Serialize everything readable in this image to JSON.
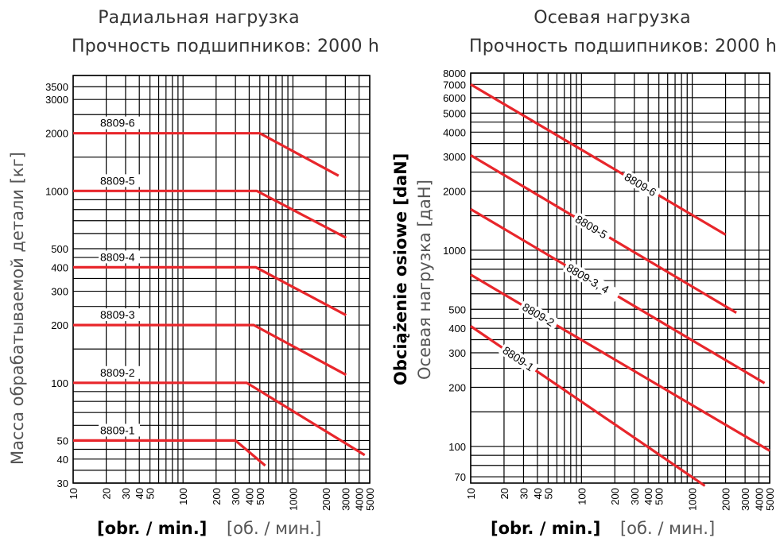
{
  "charts": {
    "left": {
      "title_line1": "Радиальная нагрузка",
      "title_line2": "Прочность подшипников: 2000 h",
      "ylabel": "Масса обрабатываемой детали [кг]",
      "xlabel_bold": "[obr. / min.]",
      "xlabel_ru": "[об. / мин.]"
    },
    "right": {
      "title_line1": "Осевая нагрузка",
      "title_line2": "Прочность подшипников: 2000 h",
      "ylabel_bold": "Obciążenie osiowe [daN]",
      "ylabel_ru": "Осевая нагрузка [даН]",
      "xlabel_bold": "[obr. / min.]",
      "xlabel_ru": "[об. / мин.]"
    }
  },
  "chart_data": [
    {
      "type": "line",
      "title": "Радиальная нагрузка",
      "subtitle": "Прочность подшипников: 2000 h",
      "xlabel": "[obr. / min.] [об. / мин.]",
      "ylabel": "Масса обрабатываемой детали [кг]",
      "xscale": "log",
      "yscale": "log",
      "xlim": [
        10,
        5000
      ],
      "ylim": [
        30,
        4000
      ],
      "xticks": [
        10,
        20,
        30,
        40,
        50,
        100,
        200,
        300,
        400,
        500,
        1000,
        2000,
        3000,
        4000,
        5000
      ],
      "yticks": [
        30,
        40,
        50,
        100,
        200,
        300,
        400,
        500,
        1000,
        2000,
        3000,
        3500
      ],
      "grid": true,
      "line_color": "#e8262b",
      "series": [
        {
          "name": "8809-1",
          "x": [
            10,
            300,
            560
          ],
          "y": [
            50,
            50,
            37
          ]
        },
        {
          "name": "8809-2",
          "x": [
            10,
            380,
            4500
          ],
          "y": [
            100,
            100,
            42
          ]
        },
        {
          "name": "8809-3",
          "x": [
            10,
            440,
            3050
          ],
          "y": [
            200,
            200,
            110
          ]
        },
        {
          "name": "8809-4",
          "x": [
            10,
            460,
            3050
          ],
          "y": [
            400,
            400,
            225
          ]
        },
        {
          "name": "8809-5",
          "x": [
            10,
            470,
            3050
          ],
          "y": [
            1000,
            1000,
            570
          ]
        },
        {
          "name": "8809-6",
          "x": [
            10,
            500,
            2600
          ],
          "y": [
            2000,
            2000,
            1200
          ]
        }
      ]
    },
    {
      "type": "line",
      "title": "Осевая нагрузка",
      "subtitle": "Прочность подшипников: 2000 h",
      "xlabel": "[obr. / min.] [об. / мин.]",
      "ylabel": "Obciążenie osiowe [daN] Осевая нагрузка [даН]",
      "xscale": "log",
      "yscale": "log",
      "xlim": [
        10,
        5000
      ],
      "ylim": [
        65,
        8000
      ],
      "xticks": [
        10,
        20,
        30,
        40,
        50,
        100,
        200,
        300,
        400,
        500,
        1000,
        2000,
        3000,
        4000,
        5000
      ],
      "yticks": [
        70,
        100,
        200,
        300,
        400,
        500,
        1000,
        2000,
        3000,
        4000,
        5000,
        6000,
        7000,
        8000
      ],
      "grid": true,
      "line_color": "#e8262b",
      "series": [
        {
          "name": "8809-1",
          "x": [
            10,
            1300
          ],
          "y": [
            410,
            63
          ]
        },
        {
          "name": "8809-2",
          "x": [
            10,
            5000
          ],
          "y": [
            750,
            95
          ]
        },
        {
          "name": "8809-3, 4",
          "x": [
            10,
            4500
          ],
          "y": [
            1620,
            210
          ]
        },
        {
          "name": "8809-5",
          "x": [
            10,
            2500
          ],
          "y": [
            3050,
            480
          ]
        },
        {
          "name": "8809-6",
          "x": [
            10,
            2000
          ],
          "y": [
            7000,
            1200
          ]
        }
      ]
    }
  ]
}
